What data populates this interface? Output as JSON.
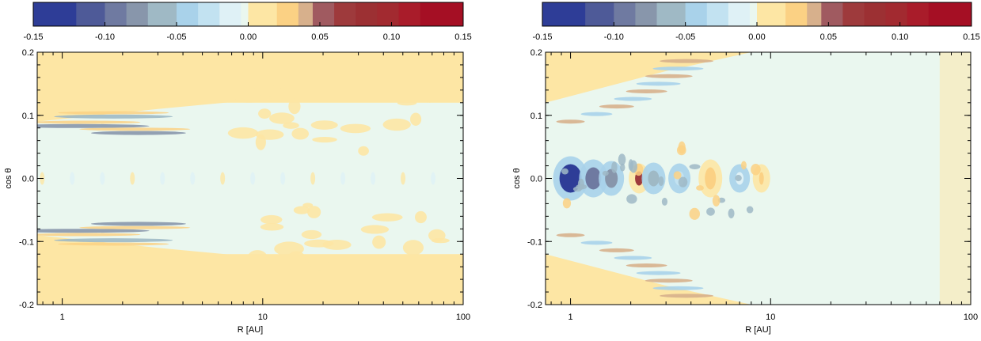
{
  "colorbar": {
    "tick_labels": [
      "-0.15",
      "-0.10",
      "-0.05",
      "0.00",
      "0.05",
      "0.10",
      "0.15"
    ],
    "tick_values": [
      -0.15,
      -0.1,
      -0.05,
      0.0,
      0.05,
      0.1,
      0.15
    ],
    "range": [
      -0.15,
      0.15
    ],
    "levels": [
      -0.15,
      -0.12,
      -0.1,
      -0.085,
      -0.07,
      -0.05,
      -0.035,
      -0.02,
      -0.005,
      0.0,
      0.02,
      0.035,
      0.045,
      0.06,
      0.075,
      0.09,
      0.105,
      0.12,
      0.15
    ],
    "colors": [
      "#2e3d97",
      "#4e5a98",
      "#6f7aa1",
      "#8896ab",
      "#9fb9c5",
      "#a9d2ea",
      "#c2e2f1",
      "#dff1f6",
      "#eaf7ef",
      "#fde6a4",
      "#fbd184",
      "#d7b08c",
      "#a05a60",
      "#9e3a3c",
      "#9c3033",
      "#a22a30",
      "#a91c2a",
      "#a50f24"
    ]
  },
  "chart_data": [
    {
      "type": "heatmap",
      "panel": "left",
      "xlabel": "R [AU]",
      "ylabel": "cos θ",
      "xscale": "log",
      "xlim": [
        0.75,
        100
      ],
      "ylim": [
        -0.2,
        0.2
      ],
      "xticks": [
        1,
        10,
        100
      ],
      "xtick_labels": [
        "1",
        "10",
        "100"
      ],
      "yticks": [
        -0.2,
        -0.1,
        0.0,
        0.1,
        0.2
      ],
      "ytick_labels": [
        "-0.2",
        "-0.1",
        "0.0",
        "0.1",
        "0.2"
      ],
      "structure": [
        {
          "region": "upper atmosphere band",
          "y_range": [
            0.09,
            0.2
          ],
          "value": 0.02
        },
        {
          "region": "lower atmosphere band",
          "y_range": [
            -0.2,
            -0.09
          ],
          "value": 0.02
        },
        {
          "region": "midplane",
          "y_range": [
            -0.07,
            0.07
          ],
          "value": -0.01
        },
        {
          "region": "stripes near surface",
          "y_range": [
            0.065,
            0.12
          ],
          "value": -0.06
        },
        {
          "region": "stripes near surface",
          "y_range": [
            -0.12,
            -0.065
          ],
          "value": -0.06
        }
      ],
      "peak_values": {
        "min": -0.08,
        "max": 0.05
      }
    },
    {
      "type": "heatmap",
      "panel": "right",
      "xlabel": "R [AU]",
      "ylabel": "cos θ",
      "xscale": "log",
      "xlim": [
        0.75,
        100
      ],
      "ylim": [
        -0.2,
        0.2
      ],
      "xticks": [
        1,
        10,
        100
      ],
      "xtick_labels": [
        "1",
        "10",
        "100"
      ],
      "yticks": [
        -0.2,
        -0.1,
        0.0,
        0.1,
        0.2
      ],
      "ytick_labels": [
        "-0.2",
        "-0.1",
        "0.0",
        "0.1",
        "0.2"
      ],
      "structure": [
        {
          "region": "midplane blobs",
          "y_range": [
            -0.05,
            0.05
          ],
          "x_range": [
            0.8,
            10
          ],
          "value": -0.15
        },
        {
          "region": "surface stripes",
          "y_range": [
            0.05,
            0.2
          ],
          "value": -0.06
        },
        {
          "region": "surface stripes",
          "y_range": [
            -0.2,
            -0.05
          ],
          "value": -0.06
        },
        {
          "region": "outer disk",
          "x_range": [
            10,
            100
          ],
          "value": -0.01
        }
      ],
      "peak_values": {
        "min": -0.15,
        "max": 0.08
      }
    }
  ]
}
